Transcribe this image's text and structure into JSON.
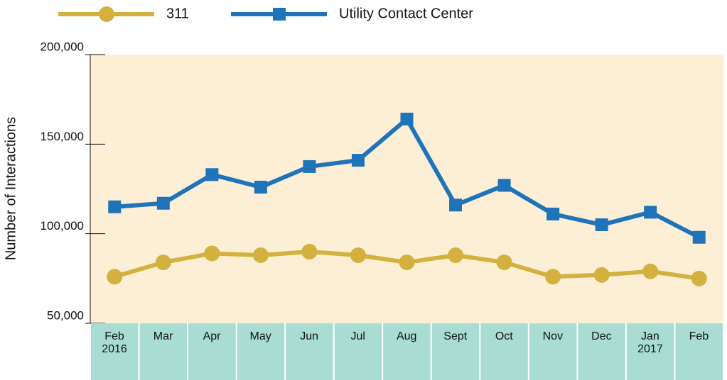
{
  "chart_data": {
    "type": "line",
    "y_axis_label": "Number of Interactions",
    "categories": [
      "Feb 2016",
      "Mar",
      "Apr",
      "May",
      "Jun",
      "Jul",
      "Aug",
      "Sept",
      "Oct",
      "Nov",
      "Dec",
      "Jan 2017",
      "Feb"
    ],
    "series": [
      {
        "name": "311",
        "color": "#d3b13f",
        "marker": "circle",
        "values": [
          76000,
          84000,
          89000,
          88000,
          90000,
          88000,
          84000,
          88000,
          84000,
          76000,
          77000,
          79000,
          75000
        ]
      },
      {
        "name": "Utility Contact Center",
        "color": "#1f73b8",
        "marker": "square",
        "values": [
          115000,
          117000,
          133000,
          126000,
          137500,
          141000,
          164000,
          116000,
          127000,
          111000,
          105000,
          112000,
          98000
        ]
      }
    ],
    "ylim": [
      50000,
      200000
    ],
    "yticks": [
      {
        "value": 50000,
        "label": "50,000"
      },
      {
        "value": 100000,
        "label": "100,000"
      },
      {
        "value": 150000,
        "label": "150,000"
      },
      {
        "value": 200000,
        "label": "200,000"
      }
    ],
    "legend": "top"
  }
}
